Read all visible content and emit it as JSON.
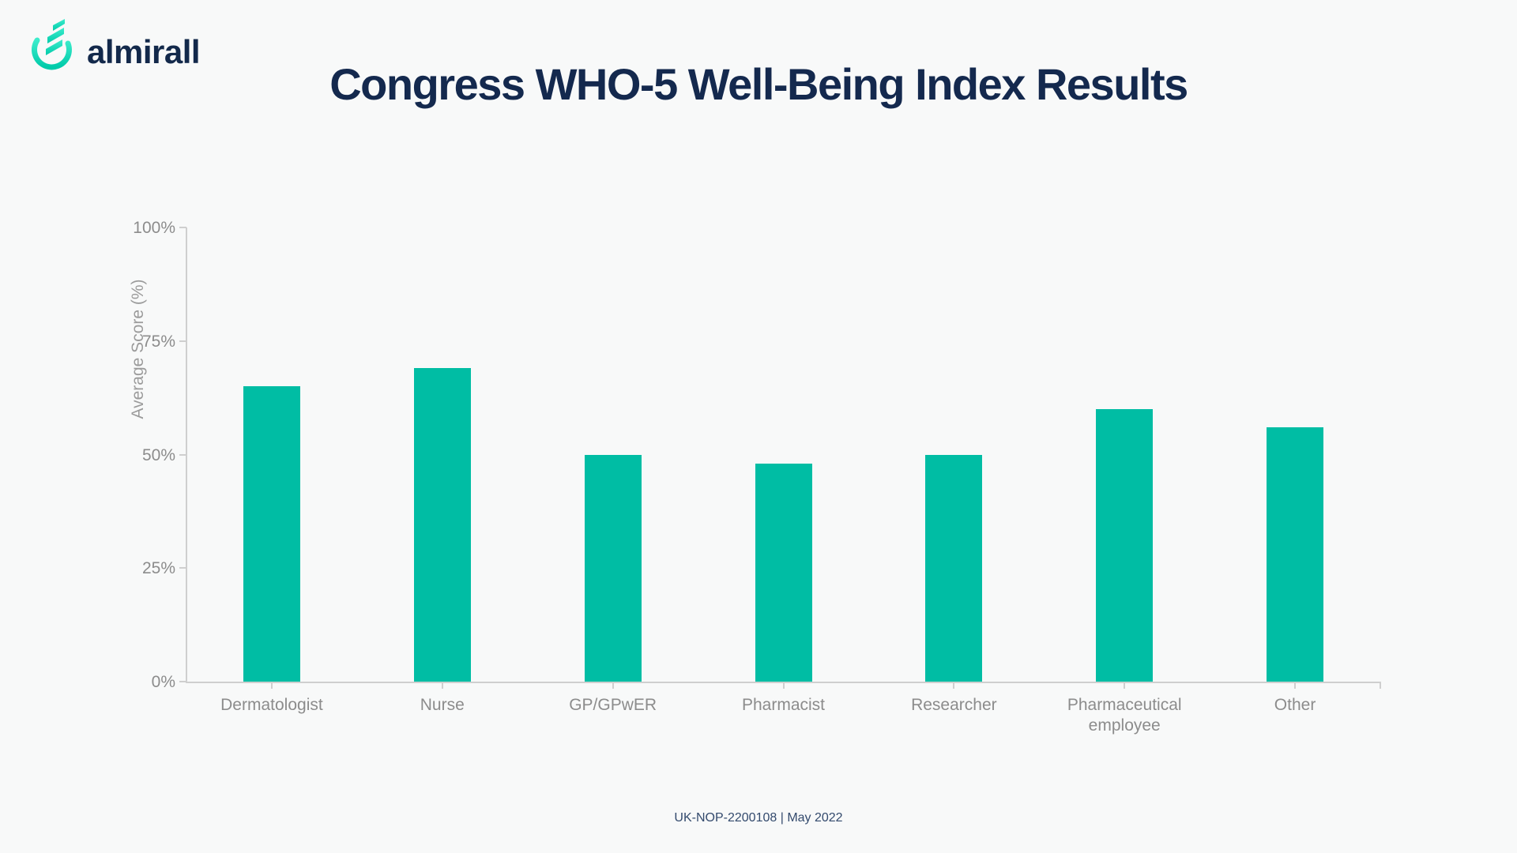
{
  "logo": {
    "text": "almirall"
  },
  "title": "Congress WHO-5 Well-Being Index Results",
  "footer": "UK-NOP-2200108 | May 2022",
  "colors": {
    "background": "#f8f9f9",
    "bar": "#00bda4",
    "axis": "#cfcfcf",
    "tick_text": "#8c8c8c",
    "title_text": "#14294e",
    "footer_text": "#334a6d",
    "logo_navy": "#13294b",
    "logo_teal_light": "#3deccc",
    "logo_teal_dark": "#00cbaa"
  },
  "chart_data": {
    "type": "bar",
    "title": "Congress WHO-5 Well-Being Index Results",
    "categories": [
      "Dermatologist",
      "Nurse",
      "GP/GPwER",
      "Pharmacist",
      "Researcher",
      "Pharmaceutical employee",
      "Other"
    ],
    "values": [
      65,
      69,
      50,
      48,
      50,
      60,
      56
    ],
    "xlabel": "",
    "ylabel": "Average Score (%)",
    "ylim": [
      0,
      100
    ],
    "yticks": [
      {
        "value": 100,
        "label": "100%"
      },
      {
        "value": 75,
        "label": "75%"
      },
      {
        "value": 50,
        "label": "50%"
      },
      {
        "value": 25,
        "label": "25%"
      },
      {
        "value": 0,
        "label": "0%"
      }
    ],
    "grid": false,
    "legend": false,
    "bar_color": "#00bda4"
  }
}
